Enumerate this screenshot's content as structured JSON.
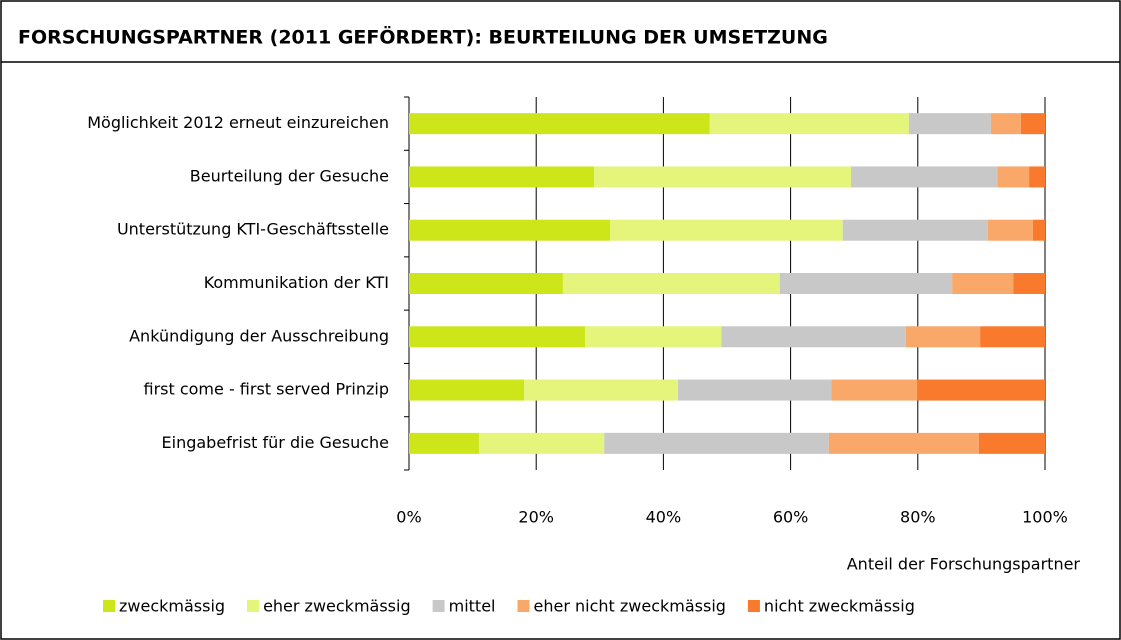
{
  "chart_data": {
    "type": "stacked_barh",
    "title": "FORSCHUNGSPARTNER (2011 GEFÖRDERT): BEURTEILUNG DER UMSETZUNG",
    "x_label": "Anteil der Forschungspartner",
    "categories": [
      "Möglichkeit 2012 erneut einzureichen",
      "Beurteilung der Gesuche",
      "Unterstützung KTI-Geschäftsstelle",
      "Kommunikation der KTI",
      "Ankündigung der Ausschreibung",
      "first come - first served Prinzip",
      "Eingabefrist für die Gesuche"
    ],
    "series": [
      {
        "name": "zweckmässig",
        "color": "#cde61a",
        "values": [
          47.3,
          29.1,
          31.6,
          24.2,
          27.7,
          18.1,
          11.0
        ]
      },
      {
        "name": "eher zweckmässig",
        "color": "#e5f47a",
        "values": [
          31.3,
          40.4,
          36.6,
          34.1,
          21.4,
          24.2,
          19.7
        ]
      },
      {
        "name": "mittel",
        "color": "#c8c8c8",
        "values": [
          12.9,
          23.0,
          22.8,
          27.1,
          29.0,
          24.1,
          35.3
        ]
      },
      {
        "name": "eher nicht zweckmässig",
        "color": "#f9a86a",
        "values": [
          4.7,
          5.0,
          7.1,
          9.6,
          11.7,
          13.6,
          23.6
        ]
      },
      {
        "name": "nicht zweckmässig",
        "color": "#f97a2c",
        "values": [
          3.8,
          2.5,
          1.9,
          5.0,
          10.2,
          20.0,
          10.4
        ]
      }
    ],
    "xlim": [
      0,
      100
    ],
    "xticks": [
      {
        "value": 0,
        "label": "0%"
      },
      {
        "value": 20,
        "label": "20%"
      },
      {
        "value": 40,
        "label": "40%"
      },
      {
        "value": 60,
        "label": "60%"
      },
      {
        "value": 80,
        "label": "80%"
      },
      {
        "value": 100,
        "label": "100%"
      }
    ],
    "grid": true,
    "legend": "bottom"
  }
}
